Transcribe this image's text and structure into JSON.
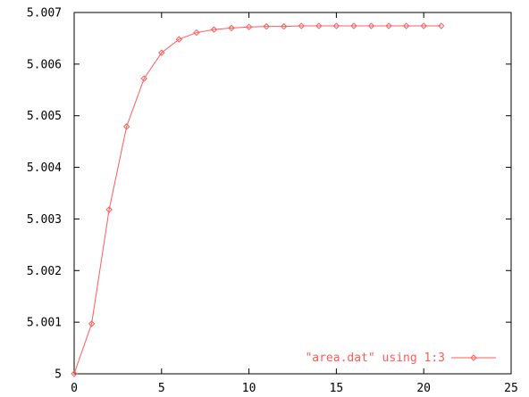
{
  "chart_data": {
    "type": "line",
    "title": "",
    "xlabel": "",
    "ylabel": "",
    "xlim": [
      0,
      25
    ],
    "ylim": [
      5,
      5.007
    ],
    "xticks": [
      "0",
      "5",
      "10",
      "15",
      "20",
      "25"
    ],
    "yticks": [
      "5",
      "5.001",
      "5.002",
      "5.003",
      "5.004",
      "5.005",
      "5.006",
      "5.007"
    ],
    "grid": false,
    "legend": "bottom-right",
    "series": [
      {
        "name": "\"area.dat\" using 1:3",
        "color": "#ff5a5a",
        "marker": "diamond",
        "x": [
          0,
          1,
          2,
          3,
          4,
          5,
          6,
          7,
          8,
          9,
          10,
          11,
          12,
          13,
          14,
          15,
          16,
          17,
          18,
          19,
          20,
          21
        ],
        "y": [
          5.0,
          5.00097,
          5.00318,
          5.00479,
          5.00572,
          5.00622,
          5.00648,
          5.00661,
          5.00667,
          5.0067,
          5.00672,
          5.00673,
          5.00673,
          5.00674,
          5.00674,
          5.00674,
          5.00674,
          5.00674,
          5.00674,
          5.00674,
          5.00674,
          5.00674
        ]
      }
    ]
  }
}
